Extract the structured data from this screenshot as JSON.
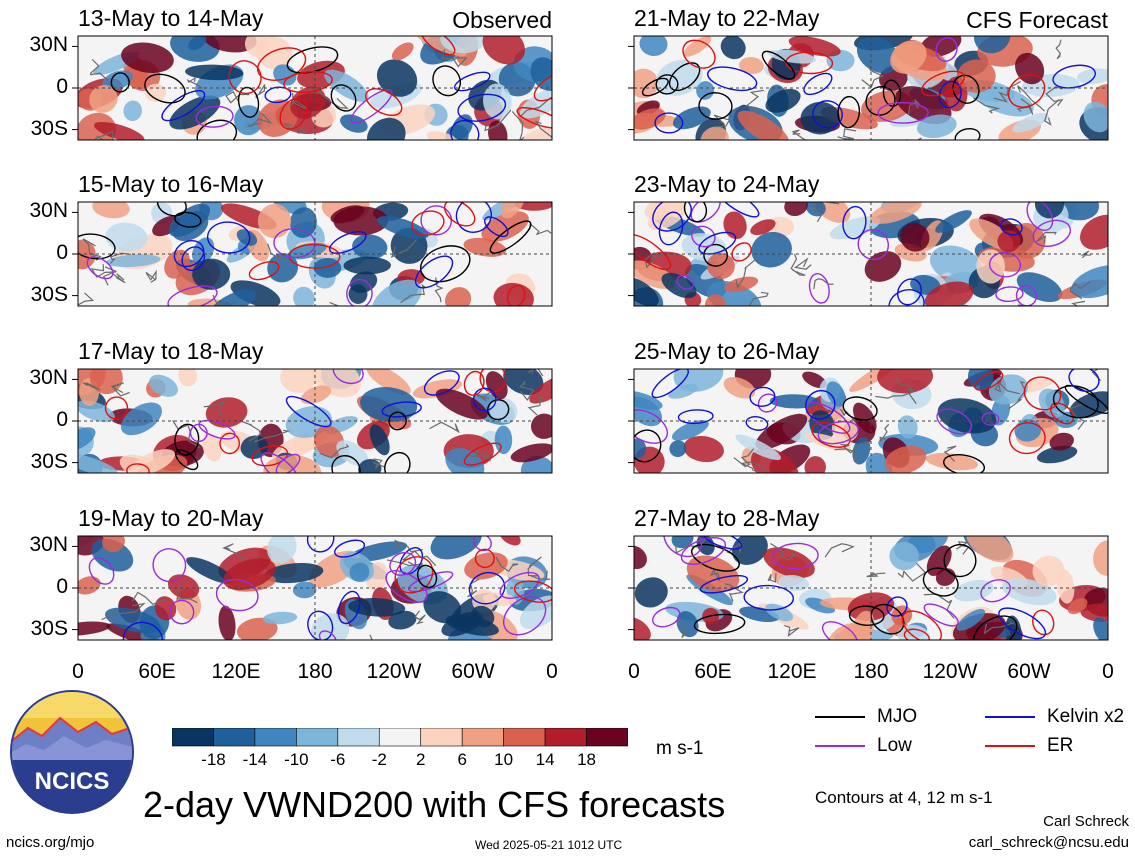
{
  "chart_data": {
    "type": "heatmap",
    "title": "2-day VWND200 with CFS forecasts",
    "units": "m s-1",
    "variable": "VWND200",
    "y_ticks": [
      "30N",
      "0",
      "30S"
    ],
    "x_ticks": [
      "0",
      "60E",
      "120E",
      "180",
      "120W",
      "60W",
      "0"
    ],
    "colorbar": {
      "labels": [
        "-18",
        "-14",
        "-10",
        "-6",
        "-2",
        "2",
        "6",
        "10",
        "14",
        "18"
      ],
      "colors": [
        "#0a3560",
        "#1f5f9c",
        "#3f86c0",
        "#7db4d9",
        "#bfdbec",
        "#f4f4f4",
        "#fbd3bf",
        "#f1a183",
        "#d9614f",
        "#b11d2b",
        "#6a0220"
      ]
    },
    "panels_observed": [
      {
        "period": "13-May to 14-May",
        "tag": "Observed"
      },
      {
        "period": "15-May to 16-May",
        "tag": ""
      },
      {
        "period": "17-May to 18-May",
        "tag": ""
      },
      {
        "period": "19-May to 20-May",
        "tag": ""
      }
    ],
    "panels_forecast": [
      {
        "period": "21-May to 22-May",
        "tag": "CFS Forecast"
      },
      {
        "period": "23-May to 24-May",
        "tag": ""
      },
      {
        "period": "25-May to 26-May",
        "tag": ""
      },
      {
        "period": "27-May to 28-May",
        "tag": ""
      }
    ],
    "legend": [
      {
        "label": "MJO",
        "color": "#000000"
      },
      {
        "label": "Kelvin x2",
        "color": "#1010d8"
      },
      {
        "label": "Low",
        "color": "#9a2be0"
      },
      {
        "label": "ER",
        "color": "#e01010"
      }
    ],
    "contour_note": "Contours at 4, 12 m s-1"
  },
  "branding": {
    "logo_text": "NCICS",
    "url": "ncics.org/mjo",
    "timestamp": "Wed 2025-05-21 1012 UTC",
    "author": "Carl Schreck",
    "email": "carl_schreck@ncsu.edu"
  }
}
